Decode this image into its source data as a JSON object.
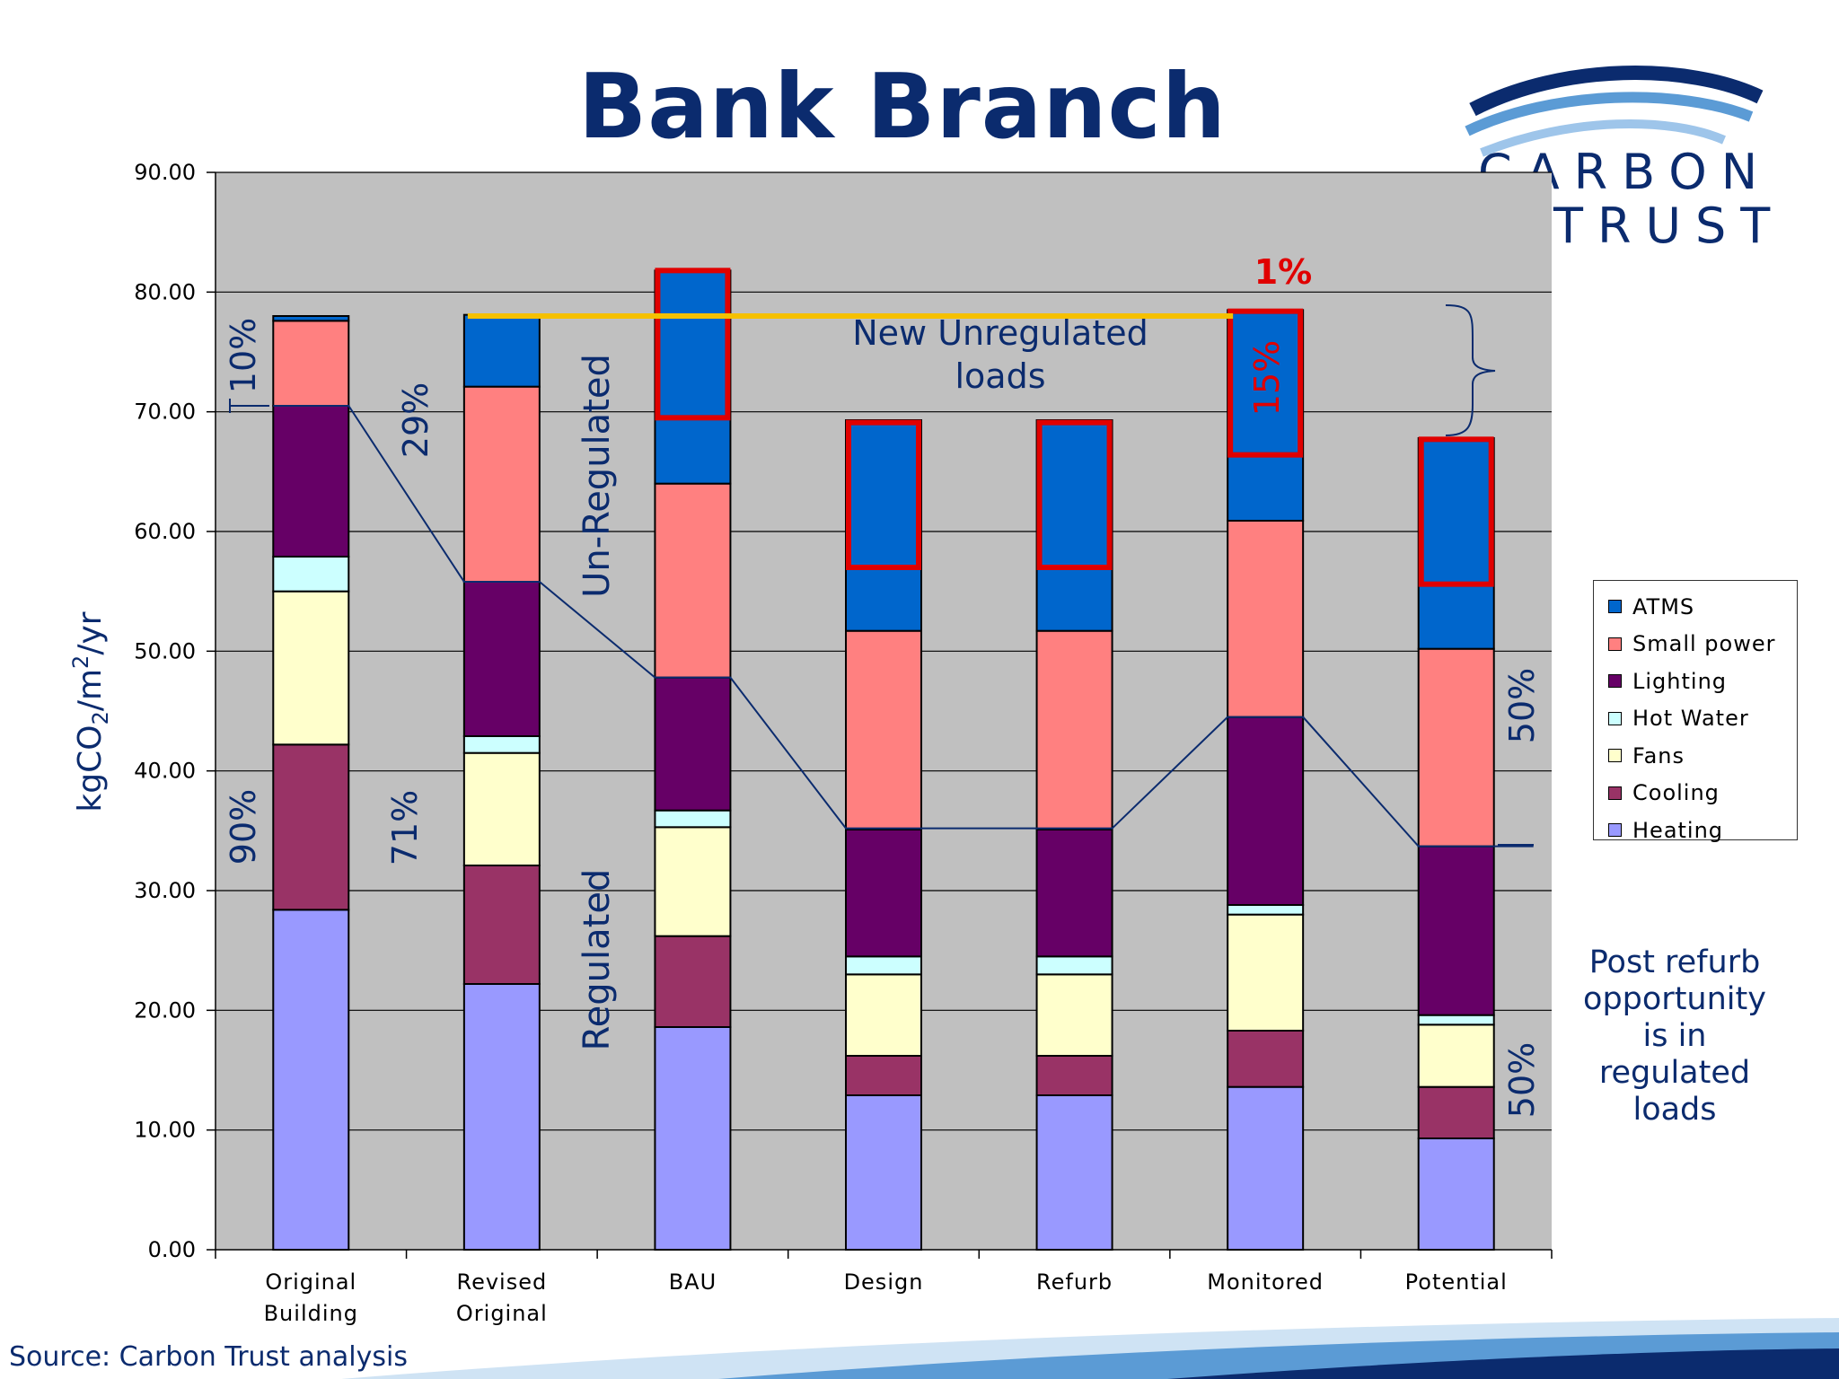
{
  "title": "Bank Branch",
  "logo": {
    "text_line1": "CARBON",
    "text_line2": "TRUST"
  },
  "source": "Source: Carbon Trust analysis",
  "post_note": [
    "Post refurb",
    "opportunity",
    "is in",
    "regulated",
    "loads"
  ],
  "colors": {
    "Heating": "#9999ff",
    "Cooling": "#993366",
    "Fans": "#ffffcc",
    "Hot Water": "#ccffff",
    "Lighting": "#660066",
    "Small power": "#ff8080",
    "ATMS": "#0066cc",
    "plot_bg": "#c0c0c0",
    "highlight": "#e00000",
    "baseline": "#f5c000",
    "annotation": "#0b2b6e"
  },
  "annotations": {
    "original_unreg_pct": "10%",
    "original_reg_pct": "90%",
    "revised_unreg_pct": "29%",
    "revised_reg_pct": "71%",
    "unregulated_label": "Un-Regulated",
    "regulated_label": "Regulated",
    "new_unreg_line1": "New Unregulated",
    "new_unreg_line2": "loads",
    "monitored_pct_top": "1%",
    "monitored_pct_in": "15%",
    "potential_unreg_pct": "50%",
    "potential_reg_pct": "50%"
  },
  "chart_data": {
    "type": "bar",
    "stacked": true,
    "ylabel": "kgCO₂/m²/yr",
    "ylim": [
      0,
      90
    ],
    "yticks": [
      "0.00",
      "10.00",
      "20.00",
      "30.00",
      "40.00",
      "50.00",
      "60.00",
      "70.00",
      "80.00",
      "90.00"
    ],
    "categories": [
      [
        "Original",
        "Building"
      ],
      [
        "Revised",
        "Original"
      ],
      [
        "BAU"
      ],
      [
        "Design"
      ],
      [
        "Refurb"
      ],
      [
        "Monitored"
      ],
      [
        "Potential"
      ]
    ],
    "series": [
      {
        "name": "Heating",
        "values": [
          28.4,
          22.2,
          18.6,
          12.9,
          12.9,
          13.6,
          9.3
        ]
      },
      {
        "name": "Cooling",
        "values": [
          13.8,
          9.9,
          7.6,
          3.3,
          3.3,
          4.7,
          4.3
        ]
      },
      {
        "name": "Fans",
        "values": [
          12.8,
          9.4,
          9.1,
          6.8,
          6.8,
          9.7,
          5.2
        ]
      },
      {
        "name": "Hot Water",
        "values": [
          2.9,
          1.4,
          1.4,
          1.5,
          1.5,
          0.8,
          0.8
        ]
      },
      {
        "name": "Lighting",
        "values": [
          12.6,
          12.9,
          11.1,
          10.6,
          10.6,
          15.7,
          14.1
        ]
      },
      {
        "name": "Small power",
        "values": [
          7.1,
          16.3,
          16.2,
          16.6,
          16.6,
          16.4,
          16.5
        ]
      },
      {
        "name": "ATMS",
        "values": [
          0.4,
          6.0,
          17.8,
          17.6,
          17.6,
          17.6,
          17.6
        ]
      }
    ],
    "legend": {
      "placement": "right",
      "order": [
        "ATMS",
        "Small power",
        "Lighting",
        "Hot Water",
        "Fans",
        "Cooling",
        "Heating"
      ]
    },
    "regulated_line": [
      70.5,
      55.8,
      47.8,
      35.2,
      35.2,
      44.5,
      33.7
    ],
    "baseline_value": 78.0,
    "highlight_ranges": [
      [
        2,
        69.5,
        81.8
      ],
      [
        3,
        57.0,
        69.1
      ],
      [
        4,
        57.0,
        69.1
      ],
      [
        5,
        66.4,
        78.4
      ],
      [
        6,
        55.6,
        67.7
      ]
    ],
    "grid": true
  }
}
